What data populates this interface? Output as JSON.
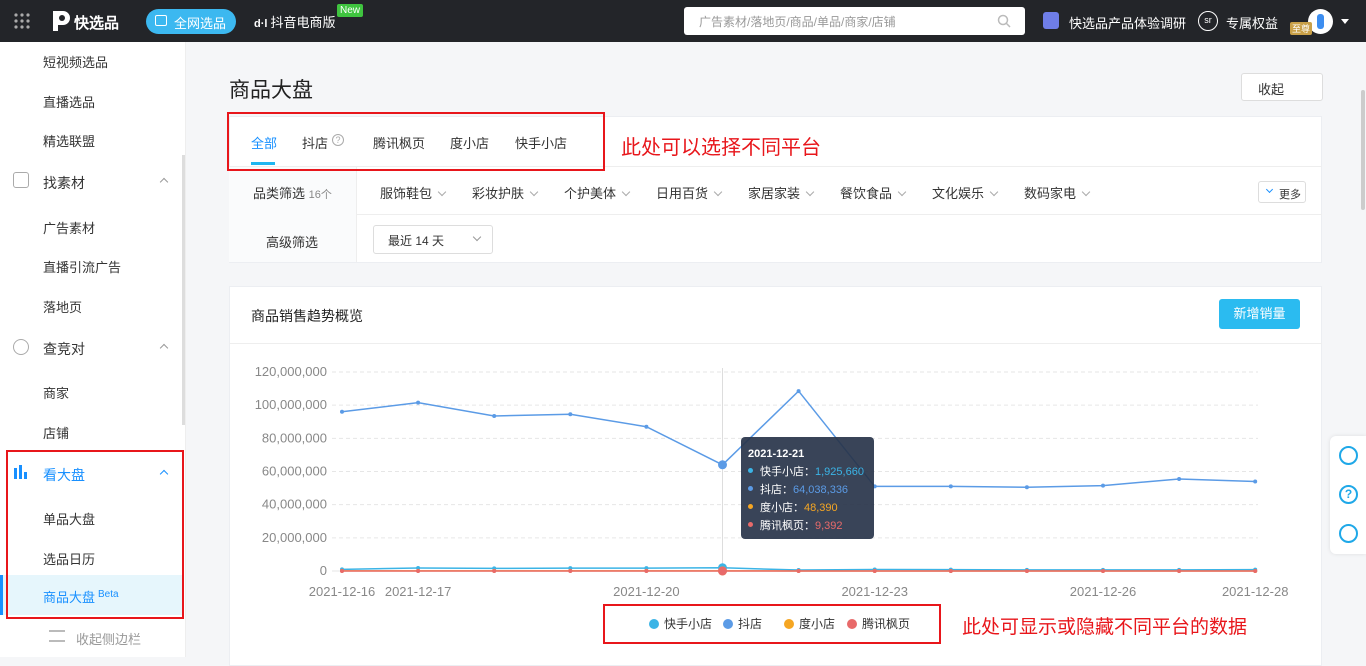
{
  "topbar": {
    "brand": "快选品",
    "nav_active": "全网选品",
    "nav_douyin": "抖音电商版",
    "badge": "New",
    "search_placeholder": "广告素材/落地页/商品/单品/商家/店铺",
    "survey": "快选品产品体验调研",
    "vip": "专属权益",
    "vip_badge": "至尊"
  },
  "sidebar": {
    "items": [
      "短视频选品",
      "直播选品",
      "精选联盟"
    ],
    "group_material": "找素材",
    "material_items": [
      "广告素材",
      "直播引流广告",
      "落地页"
    ],
    "group_compete": "查竞对",
    "compete_items": [
      "商家",
      "店铺"
    ],
    "group_market": "看大盘",
    "market_items": [
      "单品大盘",
      "选品日历",
      "商品大盘"
    ],
    "beta": "Beta",
    "collapse": "收起侧边栏"
  },
  "main": {
    "title": "商品大盘",
    "collapse_button": "收起",
    "tabs": [
      "全部",
      "抖店",
      "腾讯枫页",
      "度小店",
      "快手小店"
    ],
    "annotation_platform": "此处可以选择不同平台",
    "filter_label": "品类筛选",
    "filter_count": "16个",
    "filter_categories": [
      "服饰鞋包",
      "彩妆护肤",
      "个护美体",
      "日用百货",
      "家居家装",
      "餐饮食品",
      "文化娱乐",
      "数码家电"
    ],
    "more": "更多",
    "advanced_label": "高级筛选",
    "period_select": "最近 14 天",
    "panel_title": "商品销售趋势概览",
    "panel_button": "新增销量",
    "annotation_legend": "此处可显示或隐藏不同平台的数据"
  },
  "chart_data": {
    "type": "line",
    "categories": [
      "2021-12-16",
      "2021-12-17",
      null,
      null,
      "2021-12-20",
      null,
      null,
      "2021-12-23",
      null,
      null,
      "2021-12-26",
      null,
      "2021-12-28"
    ],
    "series": [
      {
        "name": "快手小店",
        "color": "#3bb4e6",
        "values": [
          1000000,
          1800000,
          1600000,
          1700000,
          1700000,
          1925660,
          600000,
          900000,
          800000,
          700000,
          700000,
          700000,
          800000
        ],
        "value_labels": [
          null,
          null,
          null,
          null,
          null,
          "1,925,660",
          null,
          null,
          null,
          null,
          null,
          null,
          null
        ]
      },
      {
        "name": "抖店",
        "color": "#5b9be6",
        "values": [
          96000000,
          101500000,
          93500000,
          94500000,
          87000000,
          64038336,
          108500000,
          51000000,
          51000000,
          50500000,
          51500000,
          55500000,
          54000000
        ],
        "value_labels": [
          null,
          null,
          null,
          null,
          null,
          "64,038,336",
          null,
          null,
          null,
          null,
          null,
          null,
          null
        ]
      },
      {
        "name": "度小店",
        "color": "#f5a623",
        "values": [
          50000,
          60000,
          55000,
          50000,
          52000,
          48390,
          30000,
          20000,
          20000,
          20000,
          20000,
          20000,
          20000
        ],
        "value_labels": [
          null,
          null,
          null,
          null,
          null,
          "48,390",
          null,
          null,
          null,
          null,
          null,
          null,
          null
        ]
      },
      {
        "name": "腾讯枫页",
        "color": "#e86a6a",
        "values": [
          10000,
          12000,
          11000,
          10000,
          10000,
          9392,
          5000,
          4000,
          4000,
          4000,
          4000,
          4000,
          4000
        ],
        "value_labels": [
          null,
          null,
          null,
          null,
          null,
          "9,392",
          null,
          null,
          null,
          null,
          null,
          null,
          null
        ]
      }
    ],
    "ylim": [
      0,
      120000000
    ],
    "yticks": [
      0,
      {
        "value": 20000000,
        "label": "20,000,000"
      },
      {
        "value": 40000000,
        "label": "40,000,000"
      },
      {
        "value": 60000000,
        "label": "60,000,000"
      },
      {
        "value": 80000000,
        "label": "80,000,000"
      },
      {
        "value": 100000000,
        "label": "100,000,000"
      },
      {
        "value": 120000000,
        "label": "120,000,000"
      }
    ],
    "grid": true,
    "legend": "bottom",
    "tooltip": {
      "title": "2021-12-21"
    }
  }
}
